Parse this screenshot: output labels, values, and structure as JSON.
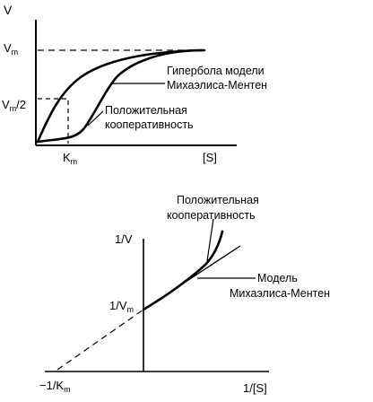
{
  "top_plot": {
    "y_axis_label": "V",
    "vm_label_main": "V",
    "vm_label_sub": "m",
    "vhalf_label_main": "V",
    "vhalf_label_sub": "m",
    "vhalf_label_suffix": "/2",
    "km_label_main": "K",
    "km_label_sub": "m",
    "x_axis_label": "[S]",
    "hyperbola_label_line1": "Гипербола модели",
    "hyperbola_label_line2": "Михаэлиса-Ментен",
    "cooperative_label_line1": "Положительная",
    "cooperative_label_line2": "кооперативность"
  },
  "bottom_plot": {
    "y_axis_label": "1/V",
    "intercept_label_main": "1/V",
    "intercept_label_sub": "m",
    "neg_km_label_main": "−1/K",
    "neg_km_label_sub": "m",
    "x_axis_label": "1/[S]",
    "cooperative_label_line1": "Положительная",
    "cooperative_label_line2": "кооперативность",
    "model_label_line1": "Модель",
    "model_label_line2": "Михаэлиса-Ментен"
  }
}
